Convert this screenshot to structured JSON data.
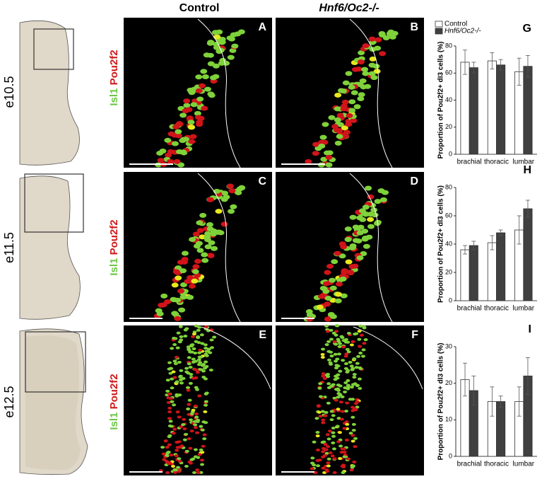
{
  "columns": [
    "Control",
    "Hnf6/Oc2-/-"
  ],
  "stages": [
    "e10.5",
    "e11.5",
    "e12.5"
  ],
  "stain": {
    "green": "Isl1",
    "red": "Pou2f2"
  },
  "panels": [
    "A",
    "B",
    "C",
    "D",
    "E",
    "F"
  ],
  "chart_data": [
    {
      "type": "bar",
      "panel": "G",
      "y_label": "Proportion of Pou2f2+ dI3 cells (%)",
      "categories": [
        "brachial",
        "thoracic",
        "lumbar"
      ],
      "series": [
        {
          "name": "Control",
          "color": "#ffffff",
          "values": [
            68,
            69,
            61
          ],
          "errors": [
            9,
            6,
            10
          ]
        },
        {
          "name": "Hnf6/Oc2-/-",
          "color": "#404040",
          "values": [
            64,
            66,
            65
          ],
          "errors": [
            4,
            4,
            8
          ]
        }
      ],
      "ylim": [
        0,
        80
      ],
      "yticks": [
        0,
        20,
        40,
        60,
        80
      ],
      "legend": "top-left"
    },
    {
      "type": "bar",
      "panel": "H",
      "y_label": "Proportion of Pou2f2+ dI3 cells (%)",
      "categories": [
        "brachial",
        "thoracic",
        "lumbar"
      ],
      "series": [
        {
          "color": "#ffffff",
          "values": [
            36,
            41,
            50
          ],
          "errors": [
            3,
            5,
            10
          ]
        },
        {
          "color": "#404040",
          "values": [
            39,
            48,
            65
          ],
          "errors": [
            3,
            2,
            6
          ]
        }
      ],
      "ylim": [
        0,
        80
      ],
      "yticks": [
        0,
        20,
        40,
        60,
        80
      ]
    },
    {
      "type": "bar",
      "panel": "I",
      "y_label": "Proportion of Pou2f2+ dI3 cells (%)",
      "categories": [
        "brachial",
        "thoracic",
        "lumbar"
      ],
      "series": [
        {
          "color": "#ffffff",
          "values": [
            21,
            15,
            15
          ],
          "errors": [
            4.5,
            4,
            4
          ]
        },
        {
          "color": "#404040",
          "values": [
            18,
            15,
            22
          ],
          "errors": [
            4,
            1.5,
            5
          ]
        }
      ],
      "ylim": [
        0,
        30
      ],
      "yticks": [
        0,
        10,
        20,
        30
      ]
    }
  ]
}
